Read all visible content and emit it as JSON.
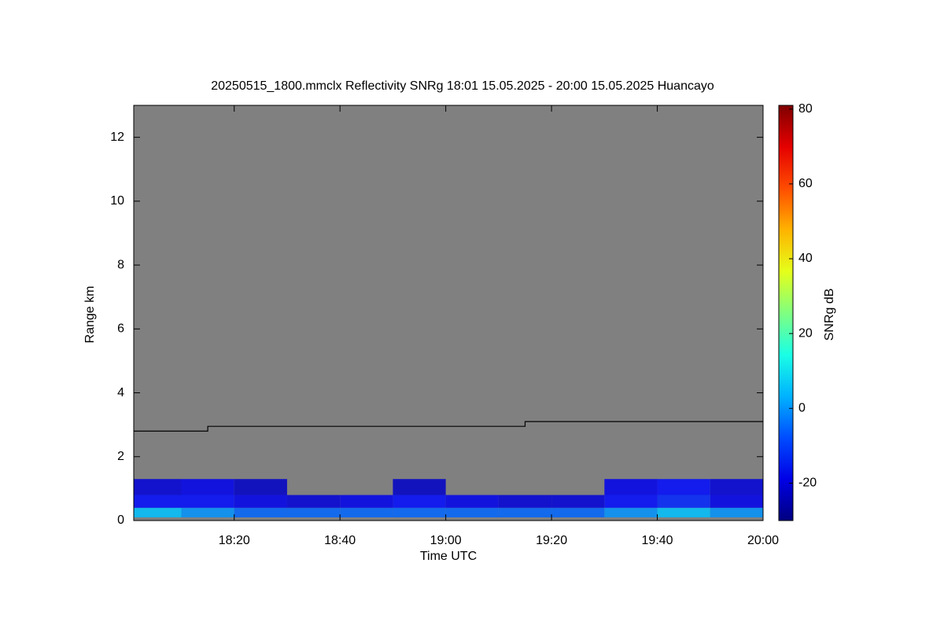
{
  "chart_data": {
    "type": "heatmap",
    "title": "20250515_1800.mmclx Reflectivity SNRg   18:01 15.05.2025 - 20:00 15.05.2025 Huancayo",
    "x_label": "Time UTC",
    "y_label": "Range km",
    "xlim": [
      "18:01",
      "20:00"
    ],
    "xticks": [
      "18:20",
      "18:40",
      "19:00",
      "19:20",
      "19:40",
      "20:00"
    ],
    "ylim": [
      0,
      13
    ],
    "yticks": [
      0,
      2,
      4,
      6,
      8,
      10,
      12
    ],
    "background": "#808080",
    "x_edges": [
      "18:01",
      "18:10",
      "18:20",
      "18:30",
      "18:40",
      "18:50",
      "19:00",
      "19:10",
      "19:20",
      "19:30",
      "19:40",
      "19:50",
      "20:00"
    ],
    "y_edges": [
      0.1,
      0.4,
      0.8,
      1.3
    ],
    "z": [
      [
        5,
        0,
        -5,
        -5,
        -5,
        -5,
        -5,
        -5,
        -5,
        0,
        5,
        0
      ],
      [
        -15,
        -15,
        -18,
        -20,
        -18,
        -15,
        -18,
        -20,
        -20,
        -15,
        -12,
        -18
      ],
      [
        -20,
        -18,
        -22,
        null,
        null,
        -22,
        null,
        null,
        null,
        -18,
        -15,
        -20
      ]
    ],
    "colormap": "jet",
    "clim": [
      -30,
      81
    ],
    "cticks": [
      -20,
      0,
      20,
      40,
      60,
      80
    ],
    "colorbar_label": "SNRg dB",
    "series": [
      {
        "color": "#000000",
        "x": [
          "18:01",
          "18:15",
          "18:15",
          "19:15",
          "19:15",
          "20:00"
        ],
        "values": [
          2.8,
          2.8,
          2.95,
          2.95,
          3.1,
          3.1
        ]
      }
    ]
  }
}
